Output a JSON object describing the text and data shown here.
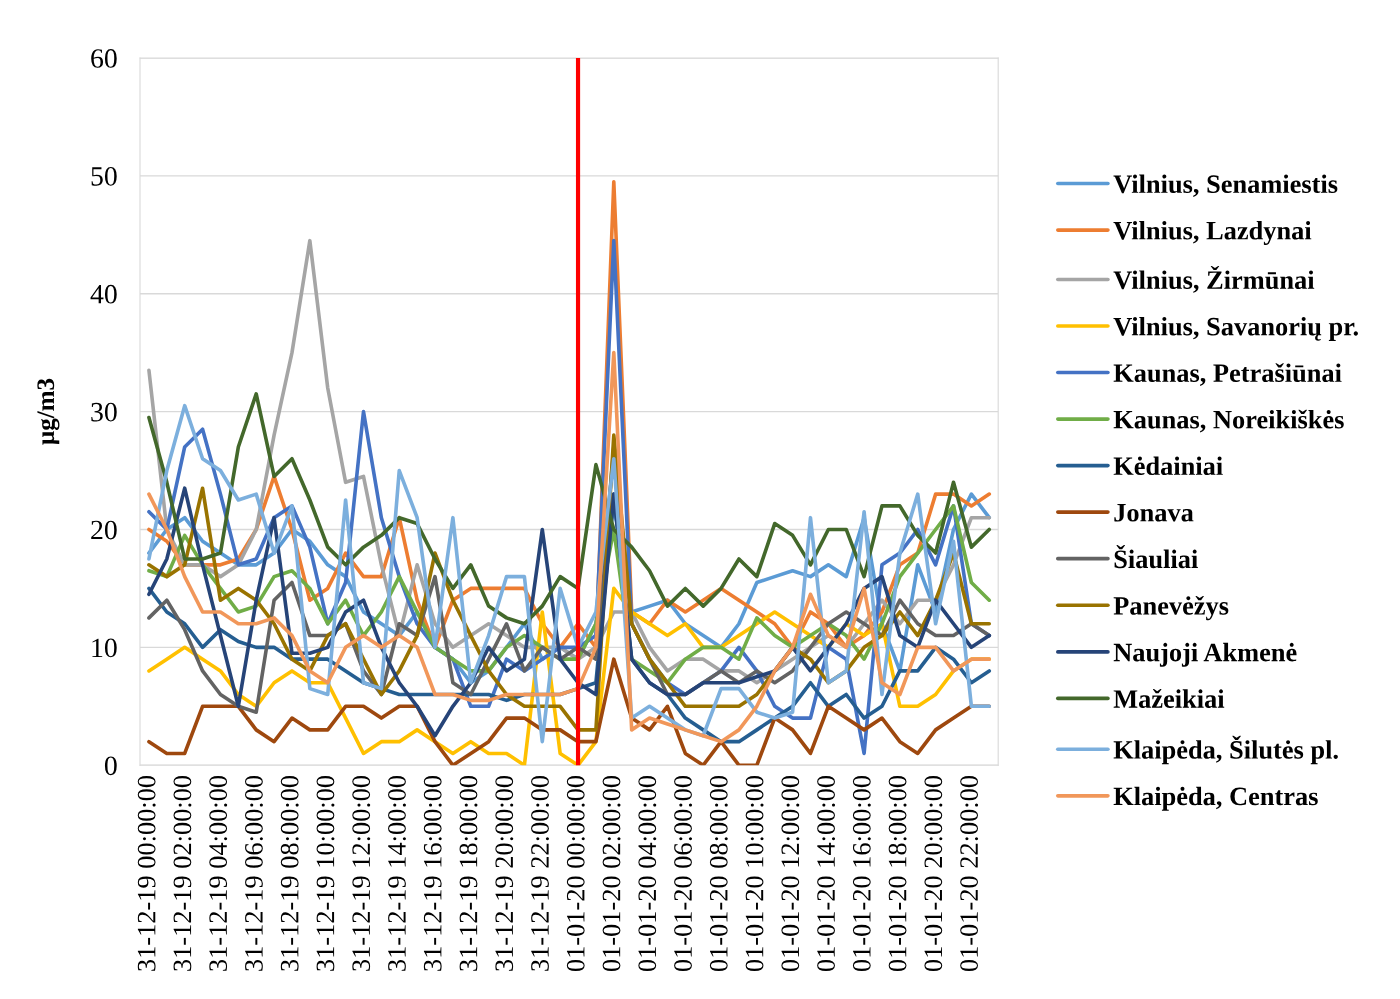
{
  "chart_data": {
    "type": "line",
    "ylabel": "µg/m3",
    "categories": [
      "31-12-19 00:00:00",
      null,
      "31-12-19 02:00:00",
      null,
      "31-12-19 04:00:00",
      null,
      "31-12-19 06:00:00",
      null,
      "31-12-19 08:00:00",
      null,
      "31-12-19 10:00:00",
      null,
      "31-12-19 12:00:00",
      null,
      "31-12-19 14:00:00",
      null,
      "31-12-19 16:00:00",
      null,
      "31-12-19 18:00:00",
      null,
      "31-12-19 20:00:00",
      null,
      "31-12-19 22:00:00",
      null,
      "01-01-20 00:00:00",
      null,
      "01-01-20 02:00:00",
      null,
      "01-01-20 04:00:00",
      null,
      "01-01-20 06:00:00",
      null,
      "01-01-20 08:00:00",
      null,
      "01-01-20 10:00:00",
      null,
      "01-01-20 12:00:00",
      null,
      "01-01-20 14:00:00",
      null,
      "01-01-20 16:00:00",
      null,
      "01-01-20 18:00:00",
      null,
      "01-01-20 20:00:00",
      null,
      "01-01-20 22:00:00",
      null
    ],
    "series": [
      {
        "name": "Vilnius, Senamiestis",
        "color": "#5b9bd5",
        "values": [
          18,
          20,
          21,
          19,
          18,
          17,
          17,
          18,
          20,
          19,
          17,
          16,
          13,
          12,
          11,
          13,
          10,
          9,
          7,
          8,
          10,
          12,
          9,
          10,
          9,
          12,
          22,
          13,
          13.5,
          14,
          12,
          11,
          10,
          12,
          15.5,
          16,
          16.5,
          16,
          17,
          16,
          21,
          12,
          8,
          17,
          13,
          20,
          23,
          21
        ]
      },
      {
        "name": "Vilnius, Lazdynai",
        "color": "#ed7d31",
        "values": [
          20,
          19,
          17,
          17,
          17,
          17.5,
          20,
          24.5,
          20,
          14,
          15,
          18,
          16,
          16,
          21,
          14,
          10,
          14,
          15,
          15,
          15,
          15,
          12,
          10,
          12,
          10,
          49.5,
          13,
          12,
          14,
          13,
          14,
          15,
          14,
          13,
          12,
          10,
          13,
          12,
          10,
          11,
          13,
          17,
          18,
          23,
          23,
          22,
          23
        ]
      },
      {
        "name": "Vilnius, Žirmūnai",
        "color": "#a5a5a5",
        "values": [
          33.5,
          20,
          17,
          17,
          16,
          17,
          20,
          28,
          35,
          44.5,
          32,
          24,
          24.5,
          17,
          11,
          17,
          12,
          10,
          11,
          12,
          11,
          10,
          10,
          10,
          9,
          10,
          13,
          13,
          10,
          8,
          9,
          9,
          8,
          8,
          7,
          8,
          9,
          10,
          11,
          10,
          12,
          14,
          12,
          14,
          14,
          17,
          21,
          21
        ]
      },
      {
        "name": "Vilnius, Savanorių pr.",
        "color": "#ffc000",
        "values": [
          8,
          9,
          10,
          9,
          8,
          6,
          5,
          7,
          8,
          7,
          7,
          4,
          1,
          2,
          2,
          3,
          2,
          1,
          2,
          1,
          1,
          0,
          13,
          1,
          0,
          2,
          15,
          13,
          12,
          11,
          12,
          10,
          10,
          11,
          12,
          13,
          12,
          11,
          10,
          12,
          11,
          12,
          5,
          5,
          6,
          8,
          9,
          9
        ]
      },
      {
        "name": "Kaunas, Petrašiūnai",
        "color": "#4472c4",
        "values": [
          21.5,
          20,
          27,
          28.5,
          23,
          17,
          17.5,
          21,
          22,
          18.5,
          12,
          15.5,
          30,
          21,
          16,
          12,
          10,
          9,
          5,
          5,
          9,
          8,
          9,
          10,
          10,
          11,
          44.5,
          12,
          9,
          7,
          6,
          7,
          8,
          10,
          8,
          5,
          4,
          4,
          10,
          9,
          1,
          17,
          18,
          20,
          17,
          22,
          12,
          11
        ]
      },
      {
        "name": "Kaunas, Noreikiškės",
        "color": "#70ad47",
        "values": [
          16.5,
          16,
          19.5,
          17,
          15,
          13,
          13.5,
          16,
          16.5,
          15,
          12,
          14,
          11,
          13,
          16,
          13,
          10,
          9,
          8,
          8,
          10,
          11,
          10,
          9,
          9,
          12,
          20,
          9,
          8,
          7,
          9,
          10,
          10,
          9,
          12.5,
          11,
          10,
          11,
          12,
          11,
          9,
          12,
          16,
          18,
          20,
          22,
          15.5,
          14
        ]
      },
      {
        "name": "Kėdainiai",
        "color": "#255e91",
        "values": [
          15,
          13,
          12,
          10,
          11.5,
          10.5,
          10,
          10,
          9,
          9,
          9,
          8,
          7,
          6.5,
          6,
          6,
          6,
          6,
          6,
          6,
          5.5,
          6,
          6,
          6,
          6.5,
          7,
          23,
          9,
          7,
          6,
          4,
          3,
          2,
          2,
          3,
          4,
          5,
          7,
          5,
          6,
          4,
          5,
          8,
          8,
          10,
          9,
          7,
          8
        ]
      },
      {
        "name": "Jonava",
        "color": "#9e480e",
        "values": [
          2,
          1,
          1,
          5,
          5,
          5,
          3,
          2,
          4,
          3,
          3,
          5,
          5,
          4,
          5,
          5,
          2,
          0,
          1,
          2,
          4,
          4,
          3,
          3,
          2,
          2,
          9,
          4,
          3,
          5,
          1,
          0,
          2,
          0,
          0,
          4,
          3,
          1,
          5,
          4,
          3,
          4,
          2,
          1,
          3,
          4,
          5,
          5
        ]
      },
      {
        "name": "Šiauliai",
        "color": "#636363",
        "values": [
          12.5,
          14,
          11.5,
          8,
          6,
          5,
          4.5,
          14,
          15.5,
          11,
          11,
          12,
          8,
          6,
          12,
          11,
          16,
          7,
          6,
          9,
          12,
          8,
          10,
          9,
          10,
          9,
          27,
          12,
          9,
          6,
          6,
          7,
          8,
          7,
          8,
          7,
          8,
          10,
          12,
          13,
          12,
          11,
          14,
          12,
          11,
          11,
          12,
          11
        ]
      },
      {
        "name": "Panevėžys",
        "color": "#997300",
        "values": [
          17,
          16,
          17,
          23.5,
          14,
          15,
          14,
          12,
          9,
          8,
          11,
          12,
          9,
          6,
          8,
          11,
          18,
          14,
          11,
          8,
          6,
          5,
          5,
          5,
          3,
          3,
          28,
          12,
          9,
          7,
          5,
          5,
          5,
          5,
          6,
          8,
          10,
          9,
          7,
          8,
          10,
          11,
          13,
          11,
          14,
          18,
          12,
          12
        ]
      },
      {
        "name": "Naujoji Akmenė",
        "color": "#264478",
        "values": [
          14.5,
          17.5,
          23.5,
          17,
          11,
          5,
          14,
          21,
          9.5,
          9.5,
          10,
          13,
          14,
          10,
          7,
          5,
          2.5,
          5,
          7,
          10,
          8,
          9,
          20,
          9,
          7,
          6,
          23,
          9,
          7,
          6,
          6,
          7,
          7,
          7,
          7.5,
          8,
          10,
          8,
          10,
          12,
          15,
          16,
          11,
          10,
          14,
          12,
          10,
          11
        ]
      },
      {
        "name": "Mažeikiai",
        "color": "#43682b",
        "values": [
          29.5,
          24,
          17.5,
          17.5,
          18,
          27,
          31.5,
          24.5,
          26,
          22.5,
          18.5,
          17,
          18.5,
          19.5,
          21,
          20.5,
          17.5,
          15,
          17,
          13.5,
          12.5,
          12,
          13.5,
          16,
          15,
          25.5,
          20,
          18.5,
          16.5,
          13.5,
          15,
          13.5,
          15,
          17.5,
          16,
          20.5,
          19.5,
          17,
          20,
          20,
          16,
          22,
          22,
          19.5,
          18,
          24,
          18.5,
          20
        ]
      },
      {
        "name": "Klaipėda, Šilutės pl.",
        "color": "#7cafdd",
        "values": [
          17.5,
          25,
          30.5,
          26,
          25,
          22.5,
          23,
          18,
          22,
          6.5,
          6,
          22.5,
          7,
          6.5,
          25,
          21,
          10,
          21,
          7,
          11,
          16,
          16,
          2,
          15,
          10,
          13,
          26,
          4,
          5,
          4,
          3,
          2.5,
          6.5,
          6.5,
          4.5,
          4,
          4.5,
          21,
          7,
          8,
          21.5,
          6,
          18,
          23,
          12,
          19,
          5,
          5
        ]
      },
      {
        "name": "Klaipėda, Centras",
        "color": "#f1975a",
        "values": [
          23,
          20,
          16,
          13,
          13,
          12,
          12,
          12.5,
          11,
          8,
          7,
          10,
          11,
          10,
          11,
          10,
          6,
          6,
          5.5,
          5.5,
          6,
          6,
          6,
          6,
          6.5,
          10,
          35,
          3,
          4,
          3.5,
          3,
          2.5,
          2,
          3,
          5,
          8,
          10,
          14.5,
          11,
          10,
          15,
          7,
          6,
          10,
          10,
          8,
          9,
          9
        ]
      }
    ],
    "ylim": [
      0,
      60
    ],
    "yticks": [
      0,
      10,
      20,
      30,
      40,
      50,
      60
    ],
    "grid": "y",
    "legend": "right",
    "line_style": "solid",
    "ref_lines": [
      {
        "axis": "x",
        "value": "01-01-20 00:00:00",
        "color": "#ff0000"
      }
    ]
  }
}
